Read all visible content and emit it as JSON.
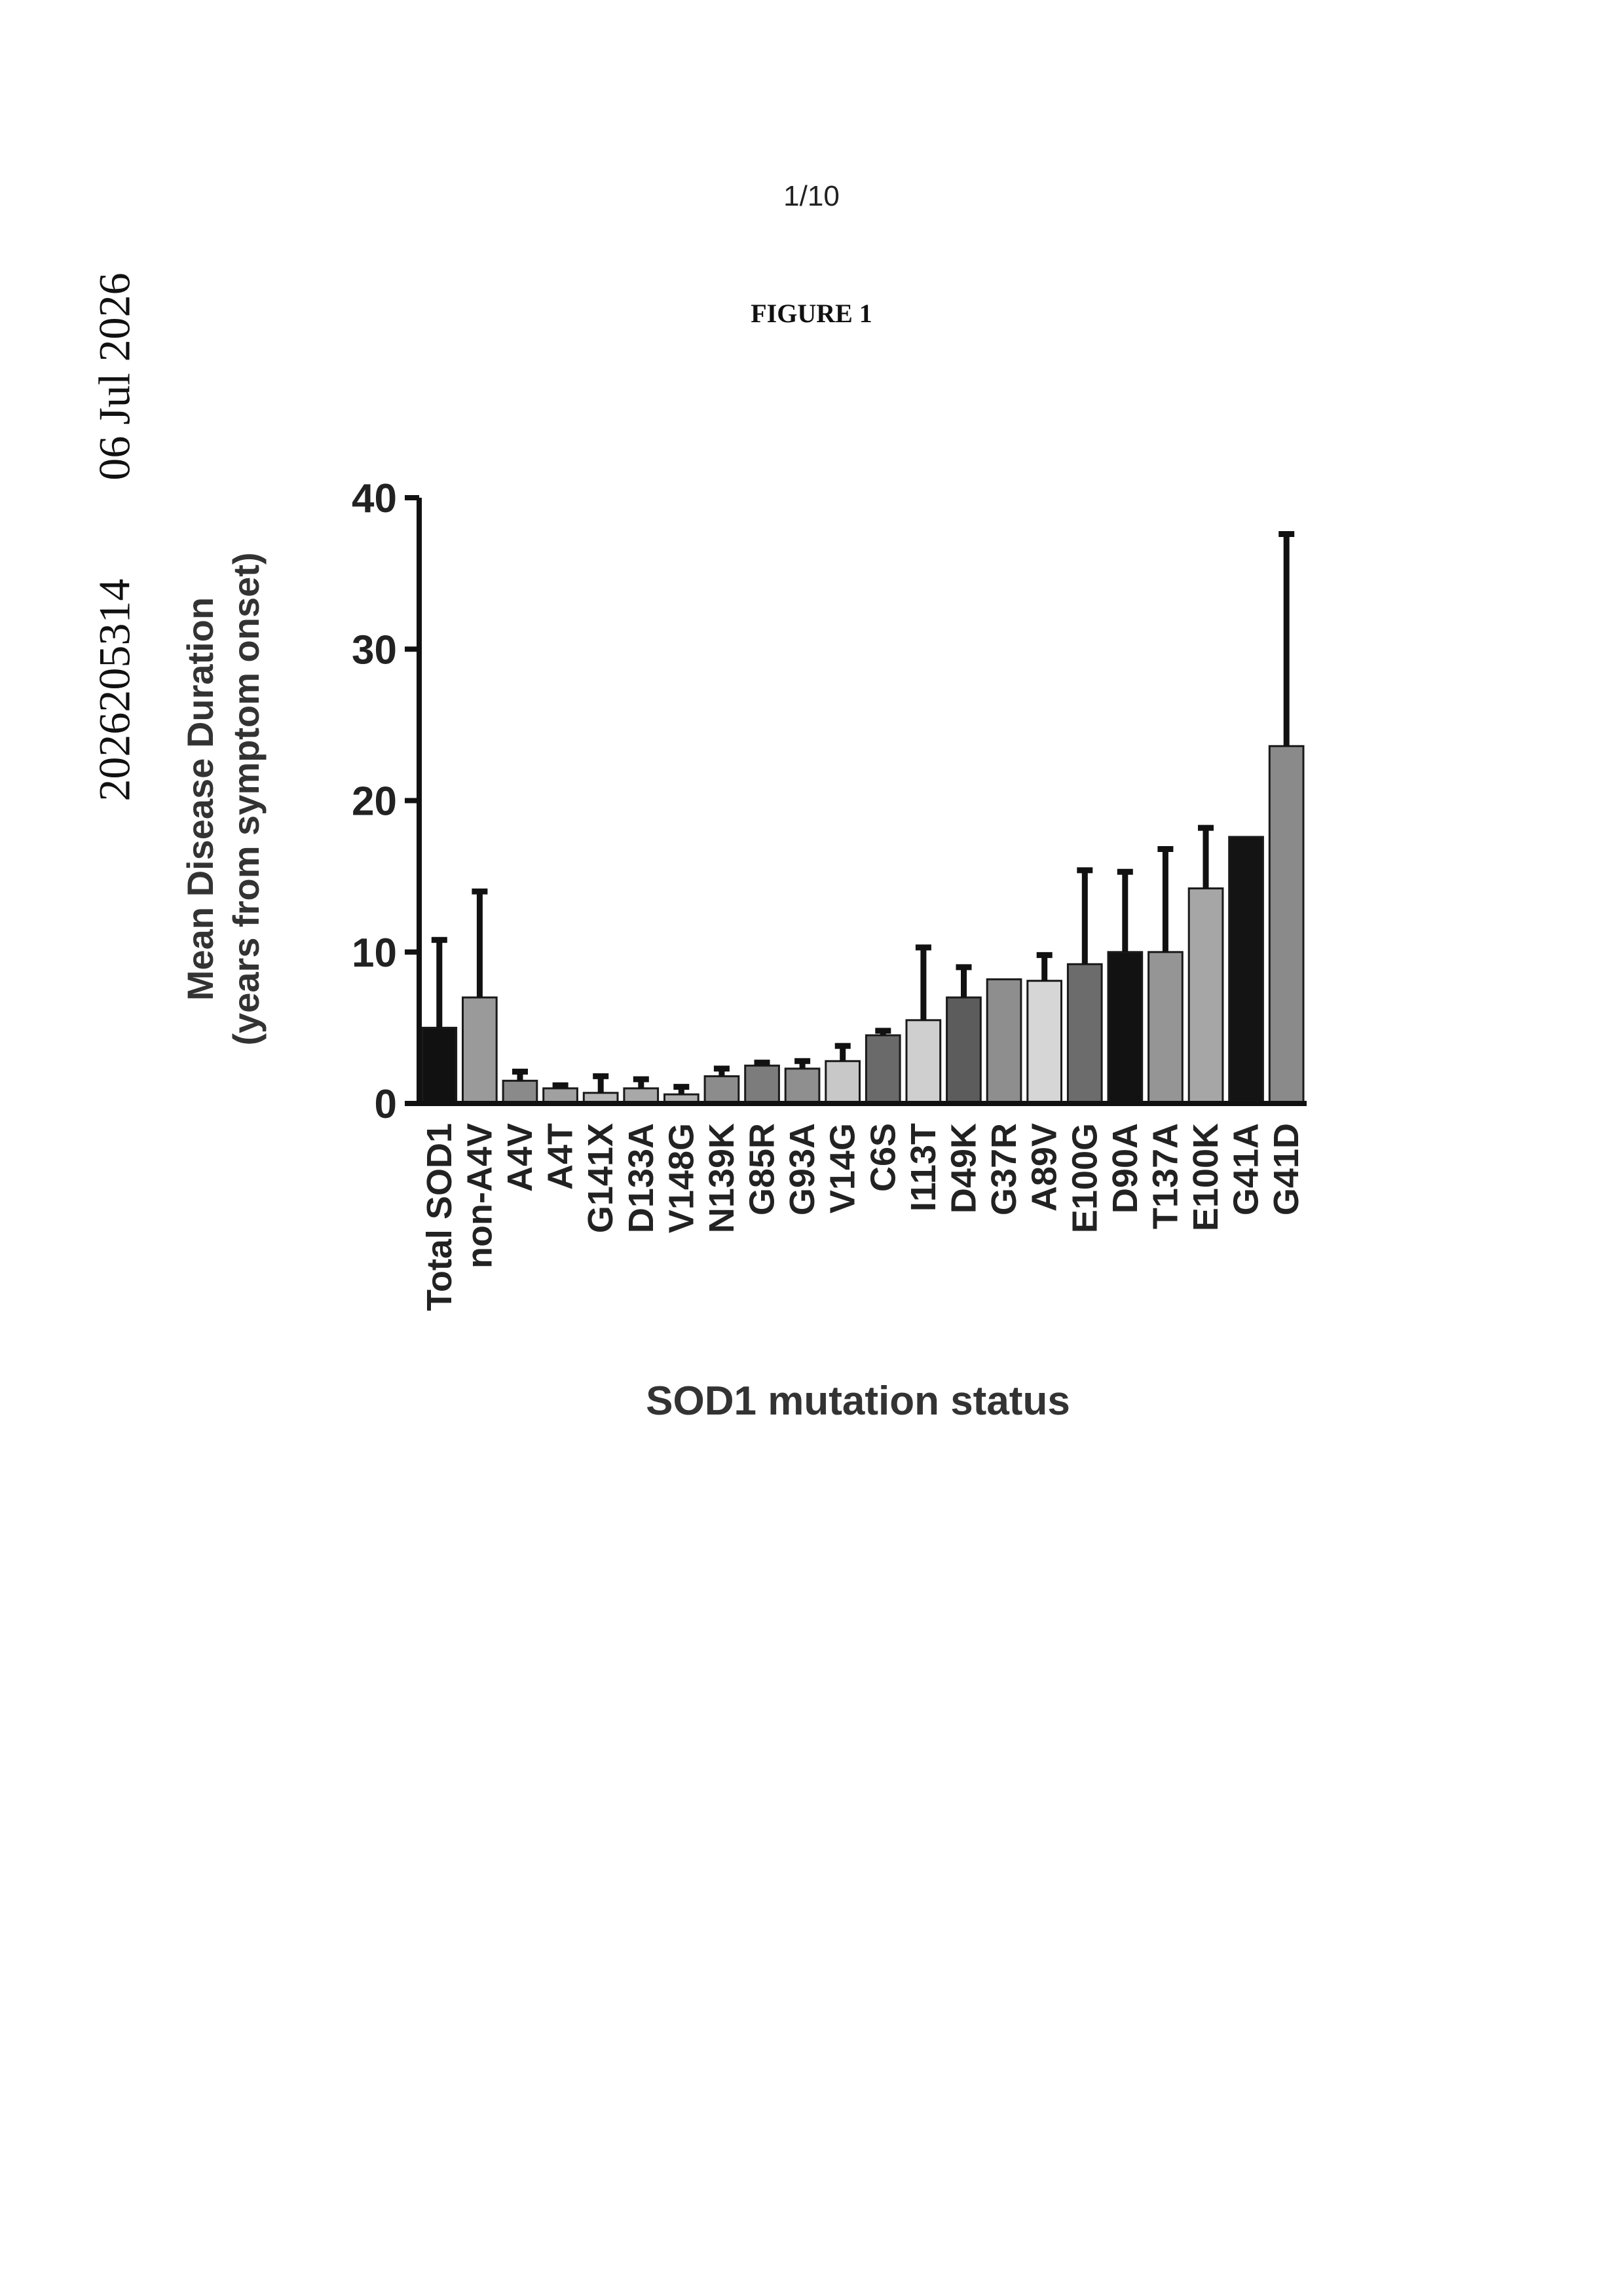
{
  "side_text": {
    "doc_number": "2026205314",
    "date": "06 Jul 2026"
  },
  "page_number": "1/10",
  "figure_title": "FIGURE 1",
  "chart_data": {
    "type": "bar",
    "xlabel": "SOD1 mutation status",
    "ylabel_line1": "Mean Disease Duration",
    "ylabel_line2": "(years from symptom onset)",
    "ylim": [
      0,
      40
    ],
    "yticks": [
      "0",
      "10",
      "20",
      "30",
      "40"
    ],
    "grid": false,
    "categories": [
      "Total SOD1",
      "non-A4V",
      "A4V",
      "A4T",
      "G141X",
      "D133A",
      "V148G",
      "N139K",
      "G85R",
      "G93A",
      "V14G",
      "C6S",
      "I113T",
      "D49K",
      "G37R",
      "A89V",
      "E100G",
      "D90A",
      "T137A",
      "E100K",
      "G41A",
      "G41D"
    ],
    "values": [
      5,
      7,
      1.5,
      1,
      0.7,
      1,
      0.6,
      1.8,
      2.5,
      2.3,
      2.8,
      4.5,
      5.5,
      7,
      8.2,
      8.1,
      9.2,
      10,
      10,
      14.2,
      17.6,
      23.6
    ],
    "errors": [
      5.8,
      7,
      0.6,
      0.2,
      1.1,
      0.6,
      0.5,
      0.5,
      0.2,
      0.5,
      1,
      0.3,
      4.8,
      2,
      0,
      1.7,
      6.2,
      5.3,
      6.8,
      4,
      0,
      14
    ],
    "colors": [
      "#111111",
      "#9a9a9a",
      "#8a8a8a",
      "#a0a0a0",
      "#b8b8b8",
      "#a8a8a8",
      "#b0b0b0",
      "#8c8c8c",
      "#7c7c7c",
      "#8f8f8f",
      "#c8c8c8",
      "#6a6a6a",
      "#cfcfcf",
      "#5c5c5c",
      "#8e8e8e",
      "#d6d6d6",
      "#6c6c6c",
      "#121212",
      "#959595",
      "#a6a6a6",
      "#141414",
      "#8a8a8a"
    ]
  }
}
